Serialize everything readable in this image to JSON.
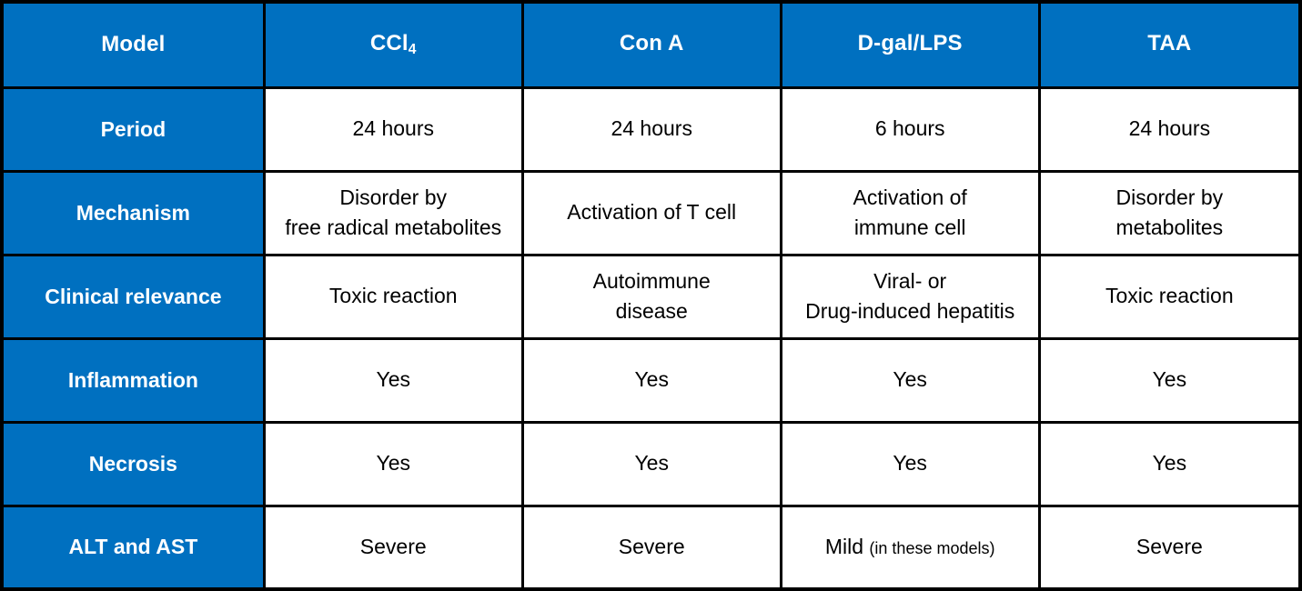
{
  "table": {
    "colors": {
      "header_bg": "#0070C0",
      "header_text": "#FFFFFF",
      "body_text": "#000000",
      "border": "#000000"
    },
    "header": {
      "row_label": "Model",
      "columns": [
        {
          "text": "CCl",
          "sub": "4"
        },
        {
          "text": "Con A",
          "sub": ""
        },
        {
          "text": "D-gal/LPS",
          "sub": ""
        },
        {
          "text": "TAA",
          "sub": ""
        }
      ]
    },
    "rows": [
      {
        "label": "Period",
        "cells": [
          {
            "value": "24 hours",
            "note": ""
          },
          {
            "value": "24 hours",
            "note": ""
          },
          {
            "value": "6 hours",
            "note": ""
          },
          {
            "value": "24 hours",
            "note": ""
          }
        ]
      },
      {
        "label": "Mechanism",
        "cells": [
          {
            "value": "Disorder by\nfree radical metabolites",
            "note": ""
          },
          {
            "value": "Activation of T cell",
            "note": ""
          },
          {
            "value": "Activation of\nimmune cell",
            "note": ""
          },
          {
            "value": "Disorder by\nmetabolites",
            "note": ""
          }
        ]
      },
      {
        "label": "Clinical relevance",
        "cells": [
          {
            "value": "Toxic reaction",
            "note": ""
          },
          {
            "value": "Autoimmune\ndisease",
            "note": ""
          },
          {
            "value": "Viral- or\nDrug-induced hepatitis",
            "note": ""
          },
          {
            "value": "Toxic reaction",
            "note": ""
          }
        ]
      },
      {
        "label": "Inflammation",
        "cells": [
          {
            "value": "Yes",
            "note": ""
          },
          {
            "value": "Yes",
            "note": ""
          },
          {
            "value": "Yes",
            "note": ""
          },
          {
            "value": "Yes",
            "note": ""
          }
        ]
      },
      {
        "label": "Necrosis",
        "cells": [
          {
            "value": "Yes",
            "note": ""
          },
          {
            "value": "Yes",
            "note": ""
          },
          {
            "value": "Yes",
            "note": ""
          },
          {
            "value": "Yes",
            "note": ""
          }
        ]
      },
      {
        "label": "ALT and AST",
        "cells": [
          {
            "value": "Severe",
            "note": ""
          },
          {
            "value": "Severe",
            "note": ""
          },
          {
            "value": "Mild",
            "note": "(in these models)"
          },
          {
            "value": "Severe",
            "note": ""
          }
        ]
      }
    ]
  }
}
